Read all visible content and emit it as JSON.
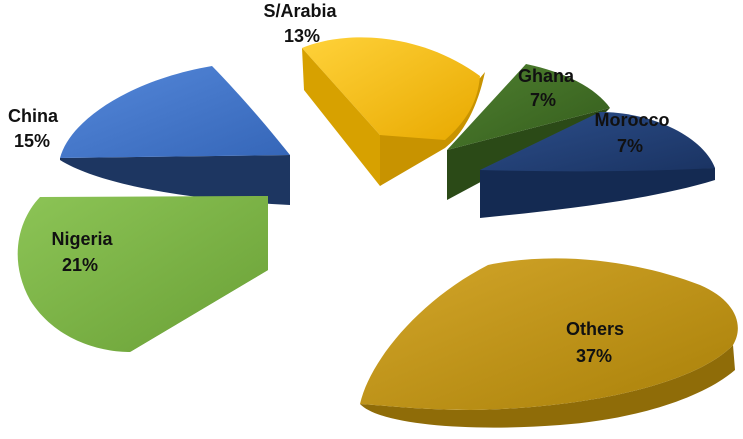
{
  "chart_data": {
    "type": "pie",
    "title": "",
    "exploded": true,
    "three_d": true,
    "slices": [
      {
        "label": "S/Arabia",
        "value_label": "13%",
        "value": 13,
        "color": "#F5B800"
      },
      {
        "label": "Ghana",
        "value_label": "7%",
        "value": 7,
        "color": "#3E6B22"
      },
      {
        "label": "Morocco",
        "value_label": "7%",
        "value": 7,
        "color": "#1F3C70"
      },
      {
        "label": "Others",
        "value_label": "37%",
        "value": 37,
        "color": "#BC9112"
      },
      {
        "label": "Nigeria",
        "value_label": "21%",
        "value": 21,
        "color": "#74AD40"
      },
      {
        "label": "China",
        "value_label": "15%",
        "value": 15,
        "color": "#3F73C8"
      }
    ]
  }
}
